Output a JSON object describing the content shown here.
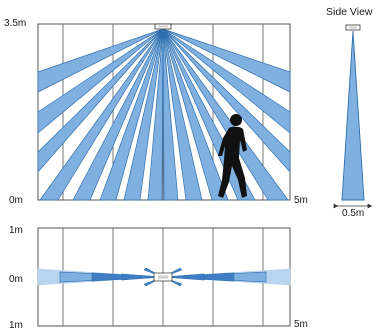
{
  "top_view": {
    "height_label": "3.5m",
    "floor_label": "0m",
    "distance_label": "5m"
  },
  "bottom_view": {
    "top_label": "1m",
    "center_label": "0m",
    "bottom_label": "1m",
    "distance_label": "5m"
  },
  "side_view": {
    "title": "Side View",
    "width_label": "0.5m"
  },
  "colors": {
    "beam": "#7fb0e0",
    "beam_edge": "#2f6fae",
    "beam_light": "#b9d4ef",
    "beam_dark": "#3f7ec4",
    "grid": "#555555",
    "person": "#111111"
  },
  "icons": {
    "sensor": "sensor-icon",
    "person": "walking-person-icon"
  }
}
